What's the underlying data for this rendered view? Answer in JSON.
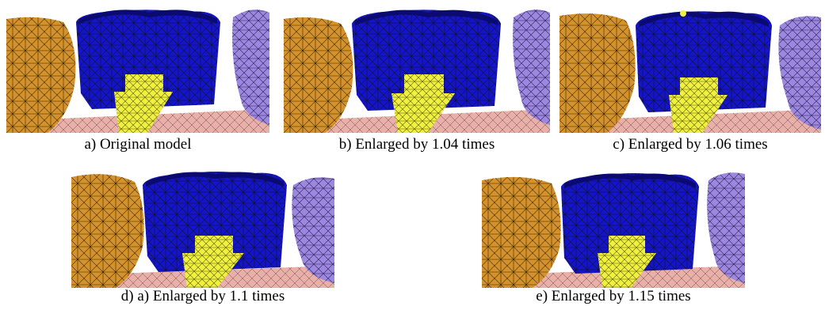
{
  "figure": {
    "panels": [
      {
        "id": "a",
        "caption": "a) Original model"
      },
      {
        "id": "b",
        "caption": "b) Enlarged by 1.04 times"
      },
      {
        "id": "c",
        "caption": "c) Enlarged by 1.06 times"
      },
      {
        "id": "d",
        "caption": "d) a) Enlarged by 1.1 times"
      },
      {
        "id": "e",
        "caption": "e) Enlarged by 1.15 times"
      }
    ],
    "colors": {
      "left_tooth": "#D4922C",
      "crown": "#1414C8",
      "abutment": "#F0F040",
      "right_tooth": "#9C88E0",
      "gum": "#E8B0A8",
      "mesh_line": "#202020"
    }
  }
}
